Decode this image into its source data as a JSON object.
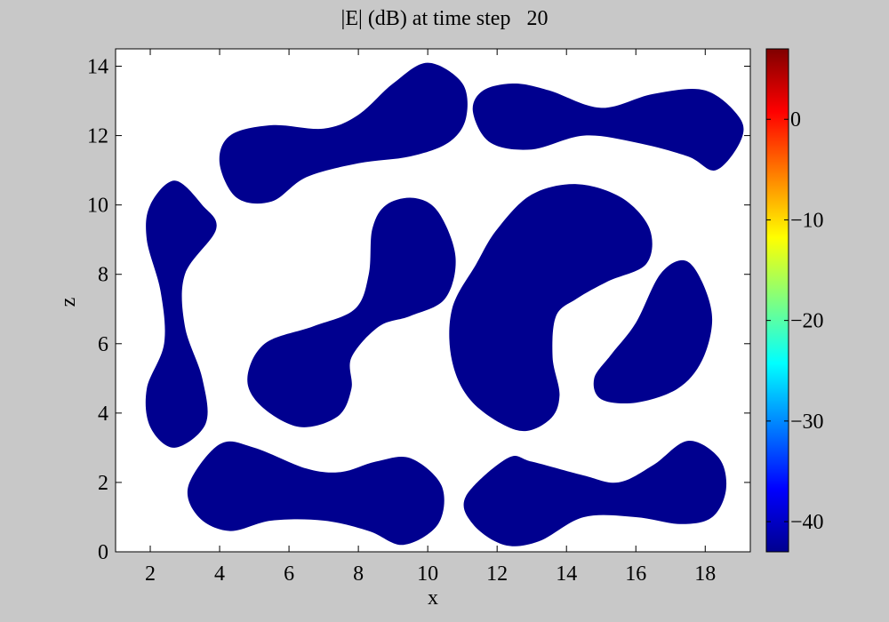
{
  "chart_data": {
    "type": "heatmap",
    "title": "|E| (dB) at time step   20",
    "xlabel": "x",
    "ylabel": "z",
    "xlim": [
      1,
      19.3
    ],
    "ylim": [
      0,
      14.5
    ],
    "x_ticks": [
      2,
      4,
      6,
      8,
      10,
      12,
      14,
      16,
      18
    ],
    "y_ticks": [
      0,
      2,
      4,
      6,
      8,
      10,
      12,
      14
    ],
    "colorbar": {
      "colormap": "jet",
      "range": [
        -43,
        7
      ],
      "ticks": [
        0,
        -10,
        -20,
        -30,
        -40
      ],
      "tick_labels": [
        "0",
        "−10",
        "−20",
        "−30",
        "−40"
      ]
    },
    "background_color": "#ffffff",
    "blob_color": "#00008f",
    "blob_value_db": -43,
    "blobs": [
      {
        "id": "left-vertical",
        "path": [
          [
            2.7,
            10.7
          ],
          [
            3.5,
            10.0
          ],
          [
            3.9,
            9.3
          ],
          [
            3.0,
            8.0
          ],
          [
            3.0,
            6.5
          ],
          [
            3.5,
            5.0
          ],
          [
            3.6,
            3.7
          ],
          [
            2.7,
            3.0
          ],
          [
            2.0,
            3.6
          ],
          [
            1.9,
            4.7
          ],
          [
            2.4,
            6.0
          ],
          [
            2.3,
            7.5
          ],
          [
            1.9,
            9.0
          ],
          [
            2.0,
            10.0
          ]
        ]
      },
      {
        "id": "top-left-dumbbell",
        "path": [
          [
            4.0,
            11.2
          ],
          [
            4.3,
            12.0
          ],
          [
            5.5,
            12.3
          ],
          [
            7.0,
            12.2
          ],
          [
            8.0,
            12.6
          ],
          [
            9.0,
            13.5
          ],
          [
            10.0,
            14.1
          ],
          [
            11.0,
            13.5
          ],
          [
            11.1,
            12.5
          ],
          [
            10.6,
            11.8
          ],
          [
            9.5,
            11.4
          ],
          [
            8.0,
            11.2
          ],
          [
            6.5,
            10.8
          ],
          [
            5.5,
            10.1
          ],
          [
            4.5,
            10.2
          ]
        ]
      },
      {
        "id": "top-right-dumbbell",
        "path": [
          [
            11.3,
            12.7
          ],
          [
            11.6,
            13.3
          ],
          [
            12.5,
            13.5
          ],
          [
            13.5,
            13.3
          ],
          [
            15.0,
            12.8
          ],
          [
            16.5,
            13.2
          ],
          [
            18.0,
            13.3
          ],
          [
            19.0,
            12.5
          ],
          [
            19.0,
            11.8
          ],
          [
            18.3,
            11.0
          ],
          [
            17.5,
            11.4
          ],
          [
            16.0,
            11.8
          ],
          [
            14.5,
            12.0
          ],
          [
            13.0,
            11.6
          ],
          [
            11.8,
            11.8
          ]
        ]
      },
      {
        "id": "center-dumbbell",
        "path": [
          [
            6.3,
            3.6
          ],
          [
            7.4,
            3.9
          ],
          [
            7.8,
            4.7
          ],
          [
            7.8,
            5.6
          ],
          [
            8.6,
            6.5
          ],
          [
            9.5,
            6.8
          ],
          [
            10.5,
            7.3
          ],
          [
            10.8,
            8.5
          ],
          [
            10.3,
            9.8
          ],
          [
            9.6,
            10.2
          ],
          [
            8.8,
            10.0
          ],
          [
            8.4,
            9.3
          ],
          [
            8.3,
            8.0
          ],
          [
            7.9,
            7.0
          ],
          [
            6.7,
            6.5
          ],
          [
            5.3,
            6.0
          ],
          [
            4.8,
            5.0
          ],
          [
            5.2,
            4.2
          ]
        ]
      },
      {
        "id": "big-kidney",
        "path": [
          [
            12.6,
            3.5
          ],
          [
            13.5,
            3.8
          ],
          [
            13.8,
            4.5
          ],
          [
            13.6,
            5.6
          ],
          [
            13.7,
            6.8
          ],
          [
            14.3,
            7.3
          ],
          [
            15.2,
            7.8
          ],
          [
            16.3,
            8.3
          ],
          [
            16.4,
            9.3
          ],
          [
            15.6,
            10.2
          ],
          [
            14.3,
            10.6
          ],
          [
            13.0,
            10.3
          ],
          [
            12.0,
            9.3
          ],
          [
            11.4,
            8.3
          ],
          [
            10.7,
            7.0
          ],
          [
            10.7,
            5.5
          ],
          [
            11.3,
            4.3
          ]
        ]
      },
      {
        "id": "right-kidney",
        "path": [
          [
            17.4,
            8.4
          ],
          [
            17.9,
            7.8
          ],
          [
            18.2,
            6.7
          ],
          [
            17.9,
            5.5
          ],
          [
            17.2,
            4.7
          ],
          [
            16.0,
            4.3
          ],
          [
            15.0,
            4.4
          ],
          [
            14.8,
            5.0
          ],
          [
            15.3,
            5.7
          ],
          [
            16.0,
            6.6
          ],
          [
            16.7,
            8.0
          ]
        ]
      },
      {
        "id": "bottom-left-dumbbell",
        "path": [
          [
            4.0,
            3.1
          ],
          [
            5.0,
            3.0
          ],
          [
            6.5,
            2.4
          ],
          [
            7.5,
            2.3
          ],
          [
            8.5,
            2.6
          ],
          [
            9.5,
            2.7
          ],
          [
            10.4,
            1.9
          ],
          [
            10.3,
            0.8
          ],
          [
            9.3,
            0.2
          ],
          [
            8.3,
            0.6
          ],
          [
            7.0,
            0.9
          ],
          [
            5.5,
            0.9
          ],
          [
            4.3,
            0.6
          ],
          [
            3.4,
            1.0
          ],
          [
            3.1,
            1.9
          ]
        ]
      },
      {
        "id": "bottom-right-dumbbell",
        "path": [
          [
            12.3,
            2.7
          ],
          [
            13.0,
            2.6
          ],
          [
            14.5,
            2.2
          ],
          [
            15.5,
            2.0
          ],
          [
            16.5,
            2.5
          ],
          [
            17.5,
            3.2
          ],
          [
            18.4,
            2.7
          ],
          [
            18.6,
            1.8
          ],
          [
            18.2,
            1.0
          ],
          [
            17.3,
            0.8
          ],
          [
            16.0,
            1.0
          ],
          [
            14.5,
            1.0
          ],
          [
            13.2,
            0.3
          ],
          [
            12.2,
            0.2
          ],
          [
            11.3,
            0.8
          ],
          [
            11.1,
            1.6
          ]
        ]
      }
    ]
  }
}
